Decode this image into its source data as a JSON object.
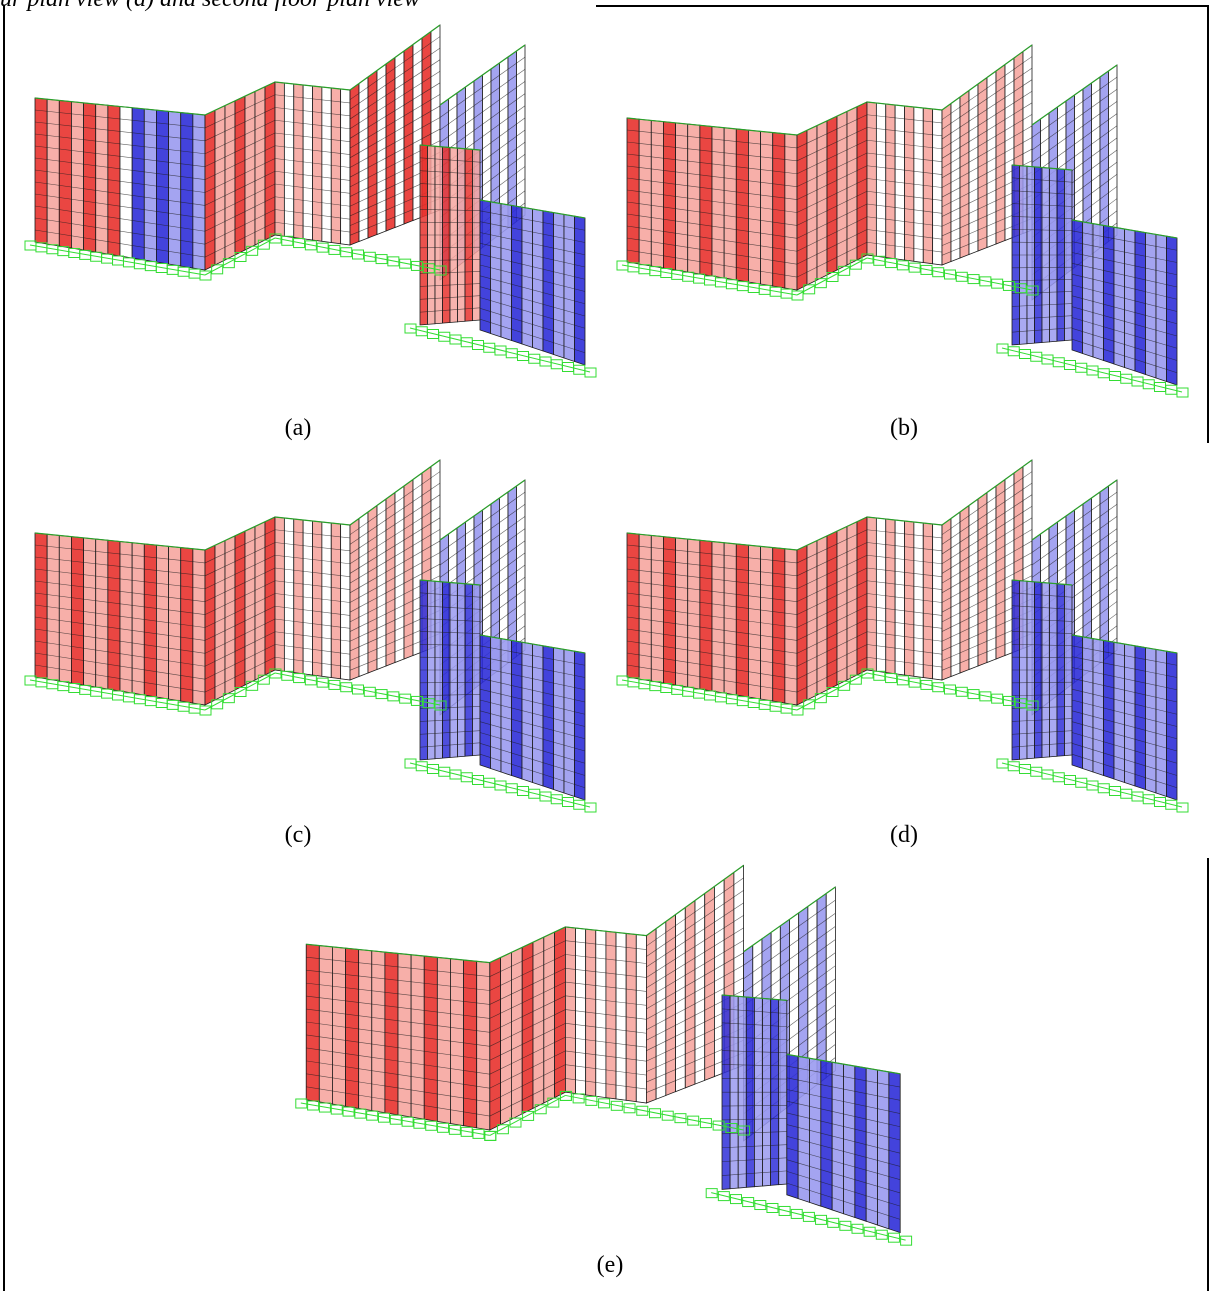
{
  "header": {
    "text": "ur plan view (d) and second floor plan view"
  },
  "panels": [
    {
      "id": "a",
      "caption": "(a)",
      "view": "deformed-shape-a"
    },
    {
      "id": "b",
      "caption": "(b)",
      "view": "deformed-shape-b"
    },
    {
      "id": "c",
      "caption": "(c)",
      "view": "deformed-shape-c"
    },
    {
      "id": "d",
      "caption": "(d)",
      "view": "deformed-shape-d"
    },
    {
      "id": "e",
      "caption": "(e)",
      "view": "deformed-shape-e"
    }
  ],
  "colors": {
    "tension": "#e8322e",
    "tension_light": "#f6a6a0",
    "compression": "#2f2fd8",
    "compression_light": "#9a9af0",
    "support": "#33dd33",
    "grid": "#1c1c1c",
    "edge": "#2aa02a"
  }
}
